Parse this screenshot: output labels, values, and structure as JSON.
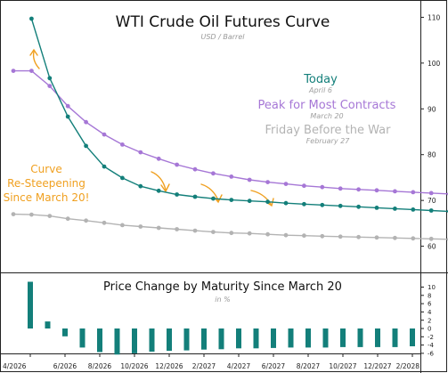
{
  "chart_data": [
    {
      "type": "line",
      "title": "WTI Crude Oil Futures Curve",
      "subtitle": "USD / Barrel",
      "ylim": [
        57,
        113
      ],
      "yticks": [
        60,
        70,
        80,
        90,
        100,
        110
      ],
      "grid": false,
      "y_axis_side": "right",
      "series": [
        {
          "name": "Today",
          "date": "April 6",
          "color": "#137f7a",
          "values": [
            109.7,
            96.7,
            88.3,
            81.9,
            77.4,
            74.9,
            73.1,
            72.1,
            71.3,
            70.8,
            70.4,
            70.1,
            69.9,
            69.7,
            69.4,
            69.2,
            69.0,
            68.8,
            68.6,
            68.4,
            68.2,
            68.0,
            67.8,
            67.6,
            67.4
          ]
        },
        {
          "name": "Peak for Most Contracts",
          "date": "March 20",
          "color": "#a677d6",
          "values": [
            98.3,
            98.3,
            95.0,
            90.6,
            87.1,
            84.4,
            82.2,
            80.5,
            79.1,
            77.8,
            76.8,
            75.9,
            75.2,
            74.5,
            74.0,
            73.6,
            73.2,
            72.9,
            72.6,
            72.4,
            72.2,
            72.0,
            71.8,
            71.6,
            71.4,
            71.2,
            71.0
          ]
        },
        {
          "name": "Friday Before the War",
          "date": "February 27",
          "color": "#b3b3b3",
          "values": [
            67.0,
            66.9,
            66.6,
            66.0,
            65.6,
            65.1,
            64.6,
            64.3,
            64.0,
            63.7,
            63.4,
            63.1,
            62.9,
            62.8,
            62.6,
            62.4,
            62.3,
            62.2,
            62.1,
            62.0,
            61.9,
            61.8,
            61.7,
            61.6,
            61.5,
            61.4
          ]
        }
      ]
    },
    {
      "type": "bar",
      "title": "Price Change by Maturity Since March 20",
      "subtitle": "in %",
      "ylim": [
        -6.5,
        12
      ],
      "yticks": [
        10,
        8,
        6,
        4,
        2,
        0,
        -2,
        -4,
        -6
      ],
      "color": "#137f7a",
      "categories": [
        "4/2026",
        "5/2026",
        "6/2026",
        "7/2026",
        "8/2026",
        "9/2026",
        "10/2026",
        "11/2026",
        "12/2026",
        "1/2027",
        "2/2027",
        "3/2027",
        "4/2027",
        "5/2027",
        "6/2027",
        "7/2027",
        "8/2027",
        "9/2027",
        "10/2027",
        "11/2027",
        "12/2027",
        "1/2028",
        "2/2028"
      ],
      "x_tick_labels": [
        "4/2026",
        "6/2026",
        "8/2026",
        "10/2026",
        "12/2026",
        "2/2027",
        "4/2027",
        "6/2027",
        "8/2027",
        "10/2027",
        "12/2027",
        "2/2028"
      ],
      "values": [
        11.3,
        1.7,
        -1.9,
        -4.6,
        -5.7,
        -6.3,
        -6.0,
        -5.6,
        -5.4,
        -5.3,
        -5.1,
        -5.0,
        -4.8,
        -4.8,
        -4.7,
        -4.6,
        -4.6,
        -4.6,
        -4.5,
        -4.5,
        -4.5,
        -4.5,
        -4.3
      ]
    }
  ],
  "annotation": {
    "lines": [
      "Curve",
      "Re-Steepening",
      "Since March 20!"
    ],
    "color": "#f0a020"
  }
}
